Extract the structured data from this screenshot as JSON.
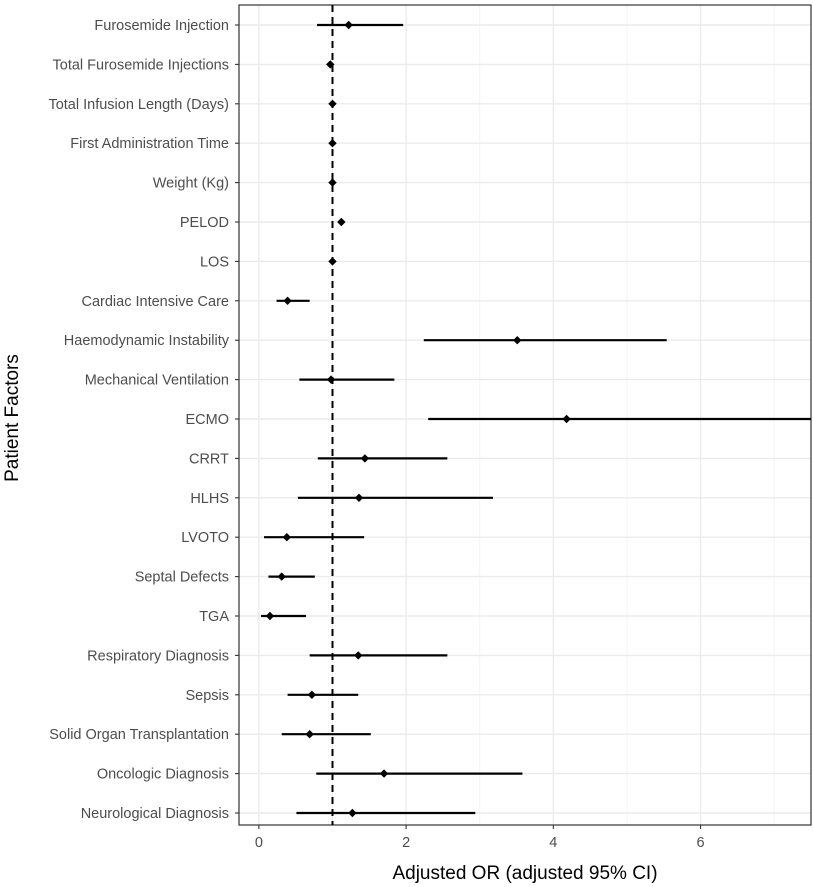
{
  "chart_data": {
    "type": "forest",
    "xlabel": "Adjusted OR (adjusted 95% CI)",
    "ylabel": "Patient Factors",
    "xlim": [
      -0.27,
      7.5
    ],
    "xticks": [
      0,
      2,
      4,
      6
    ],
    "reference_line": 1,
    "grid": true,
    "rows": [
      {
        "label": "Furosemide Injection",
        "or": 1.22,
        "lo": 0.79,
        "hi": 1.96
      },
      {
        "label": "Total Furosemide Injections",
        "or": 0.97,
        "lo": 0.95,
        "hi": 0.99
      },
      {
        "label": "Total Infusion Length (Days)",
        "or": 1.0,
        "lo": 0.99,
        "hi": 1.01
      },
      {
        "label": "First Administration Time",
        "or": 1.0,
        "lo": 0.99,
        "hi": 1.01
      },
      {
        "label": "Weight (Kg)",
        "or": 1.0,
        "lo": 0.99,
        "hi": 1.01
      },
      {
        "label": "PELOD",
        "or": 1.12,
        "lo": 1.08,
        "hi": 1.16
      },
      {
        "label": "LOS",
        "or": 1.0,
        "lo": 0.99,
        "hi": 1.01
      },
      {
        "label": "Cardiac Intensive Care",
        "or": 0.39,
        "lo": 0.24,
        "hi": 0.69
      },
      {
        "label": "Haemodynamic Instability",
        "or": 3.51,
        "lo": 2.24,
        "hi": 5.54
      },
      {
        "label": "Mechanical Ventilation",
        "or": 0.98,
        "lo": 0.55,
        "hi": 1.84
      },
      {
        "label": "ECMO",
        "or": 4.18,
        "lo": 2.3,
        "hi": 7.5
      },
      {
        "label": "CRRT",
        "or": 1.44,
        "lo": 0.8,
        "hi": 2.56
      },
      {
        "label": "HLHS",
        "or": 1.36,
        "lo": 0.53,
        "hi": 3.18
      },
      {
        "label": "LVOTO",
        "or": 0.38,
        "lo": 0.07,
        "hi": 1.43
      },
      {
        "label": "Septal Defects",
        "or": 0.31,
        "lo": 0.13,
        "hi": 0.76
      },
      {
        "label": "TGA",
        "or": 0.15,
        "lo": 0.03,
        "hi": 0.64
      },
      {
        "label": "Respiratory Diagnosis",
        "or": 1.35,
        "lo": 0.69,
        "hi": 2.56
      },
      {
        "label": "Sepsis",
        "or": 0.72,
        "lo": 0.39,
        "hi": 1.35
      },
      {
        "label": "Solid Organ Transplantation",
        "or": 0.69,
        "lo": 0.31,
        "hi": 1.52
      },
      {
        "label": "Oncologic Diagnosis",
        "or": 1.7,
        "lo": 0.78,
        "hi": 3.58
      },
      {
        "label": "Neurological Diagnosis",
        "or": 1.27,
        "lo": 0.51,
        "hi": 2.94
      }
    ]
  }
}
